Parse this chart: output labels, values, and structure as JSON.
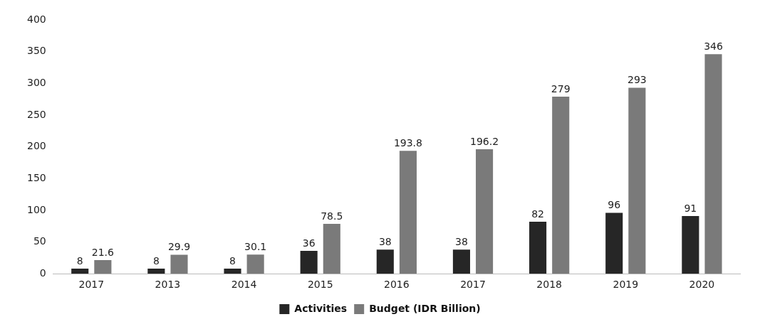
{
  "chart_data": {
    "type": "bar",
    "categories": [
      "2017",
      "2013",
      "2014",
      "2015",
      "2016",
      "2017",
      "2018",
      "2019",
      "2020"
    ],
    "series": [
      {
        "name": "Activities",
        "color": "#262626",
        "values": [
          8,
          8,
          8,
          36,
          38,
          38,
          82,
          96,
          91
        ]
      },
      {
        "name": "Budget (IDR Billion)",
        "color": "#7a7a7a",
        "values": [
          21.6,
          29.9,
          30.1,
          78.5,
          193.8,
          196.2,
          279,
          293,
          346
        ]
      }
    ],
    "ylim": [
      0,
      400
    ],
    "yticks": [
      0,
      50,
      100,
      150,
      200,
      250,
      300,
      350,
      400
    ],
    "grid": false,
    "legend": "bottom",
    "data_labels": true
  }
}
